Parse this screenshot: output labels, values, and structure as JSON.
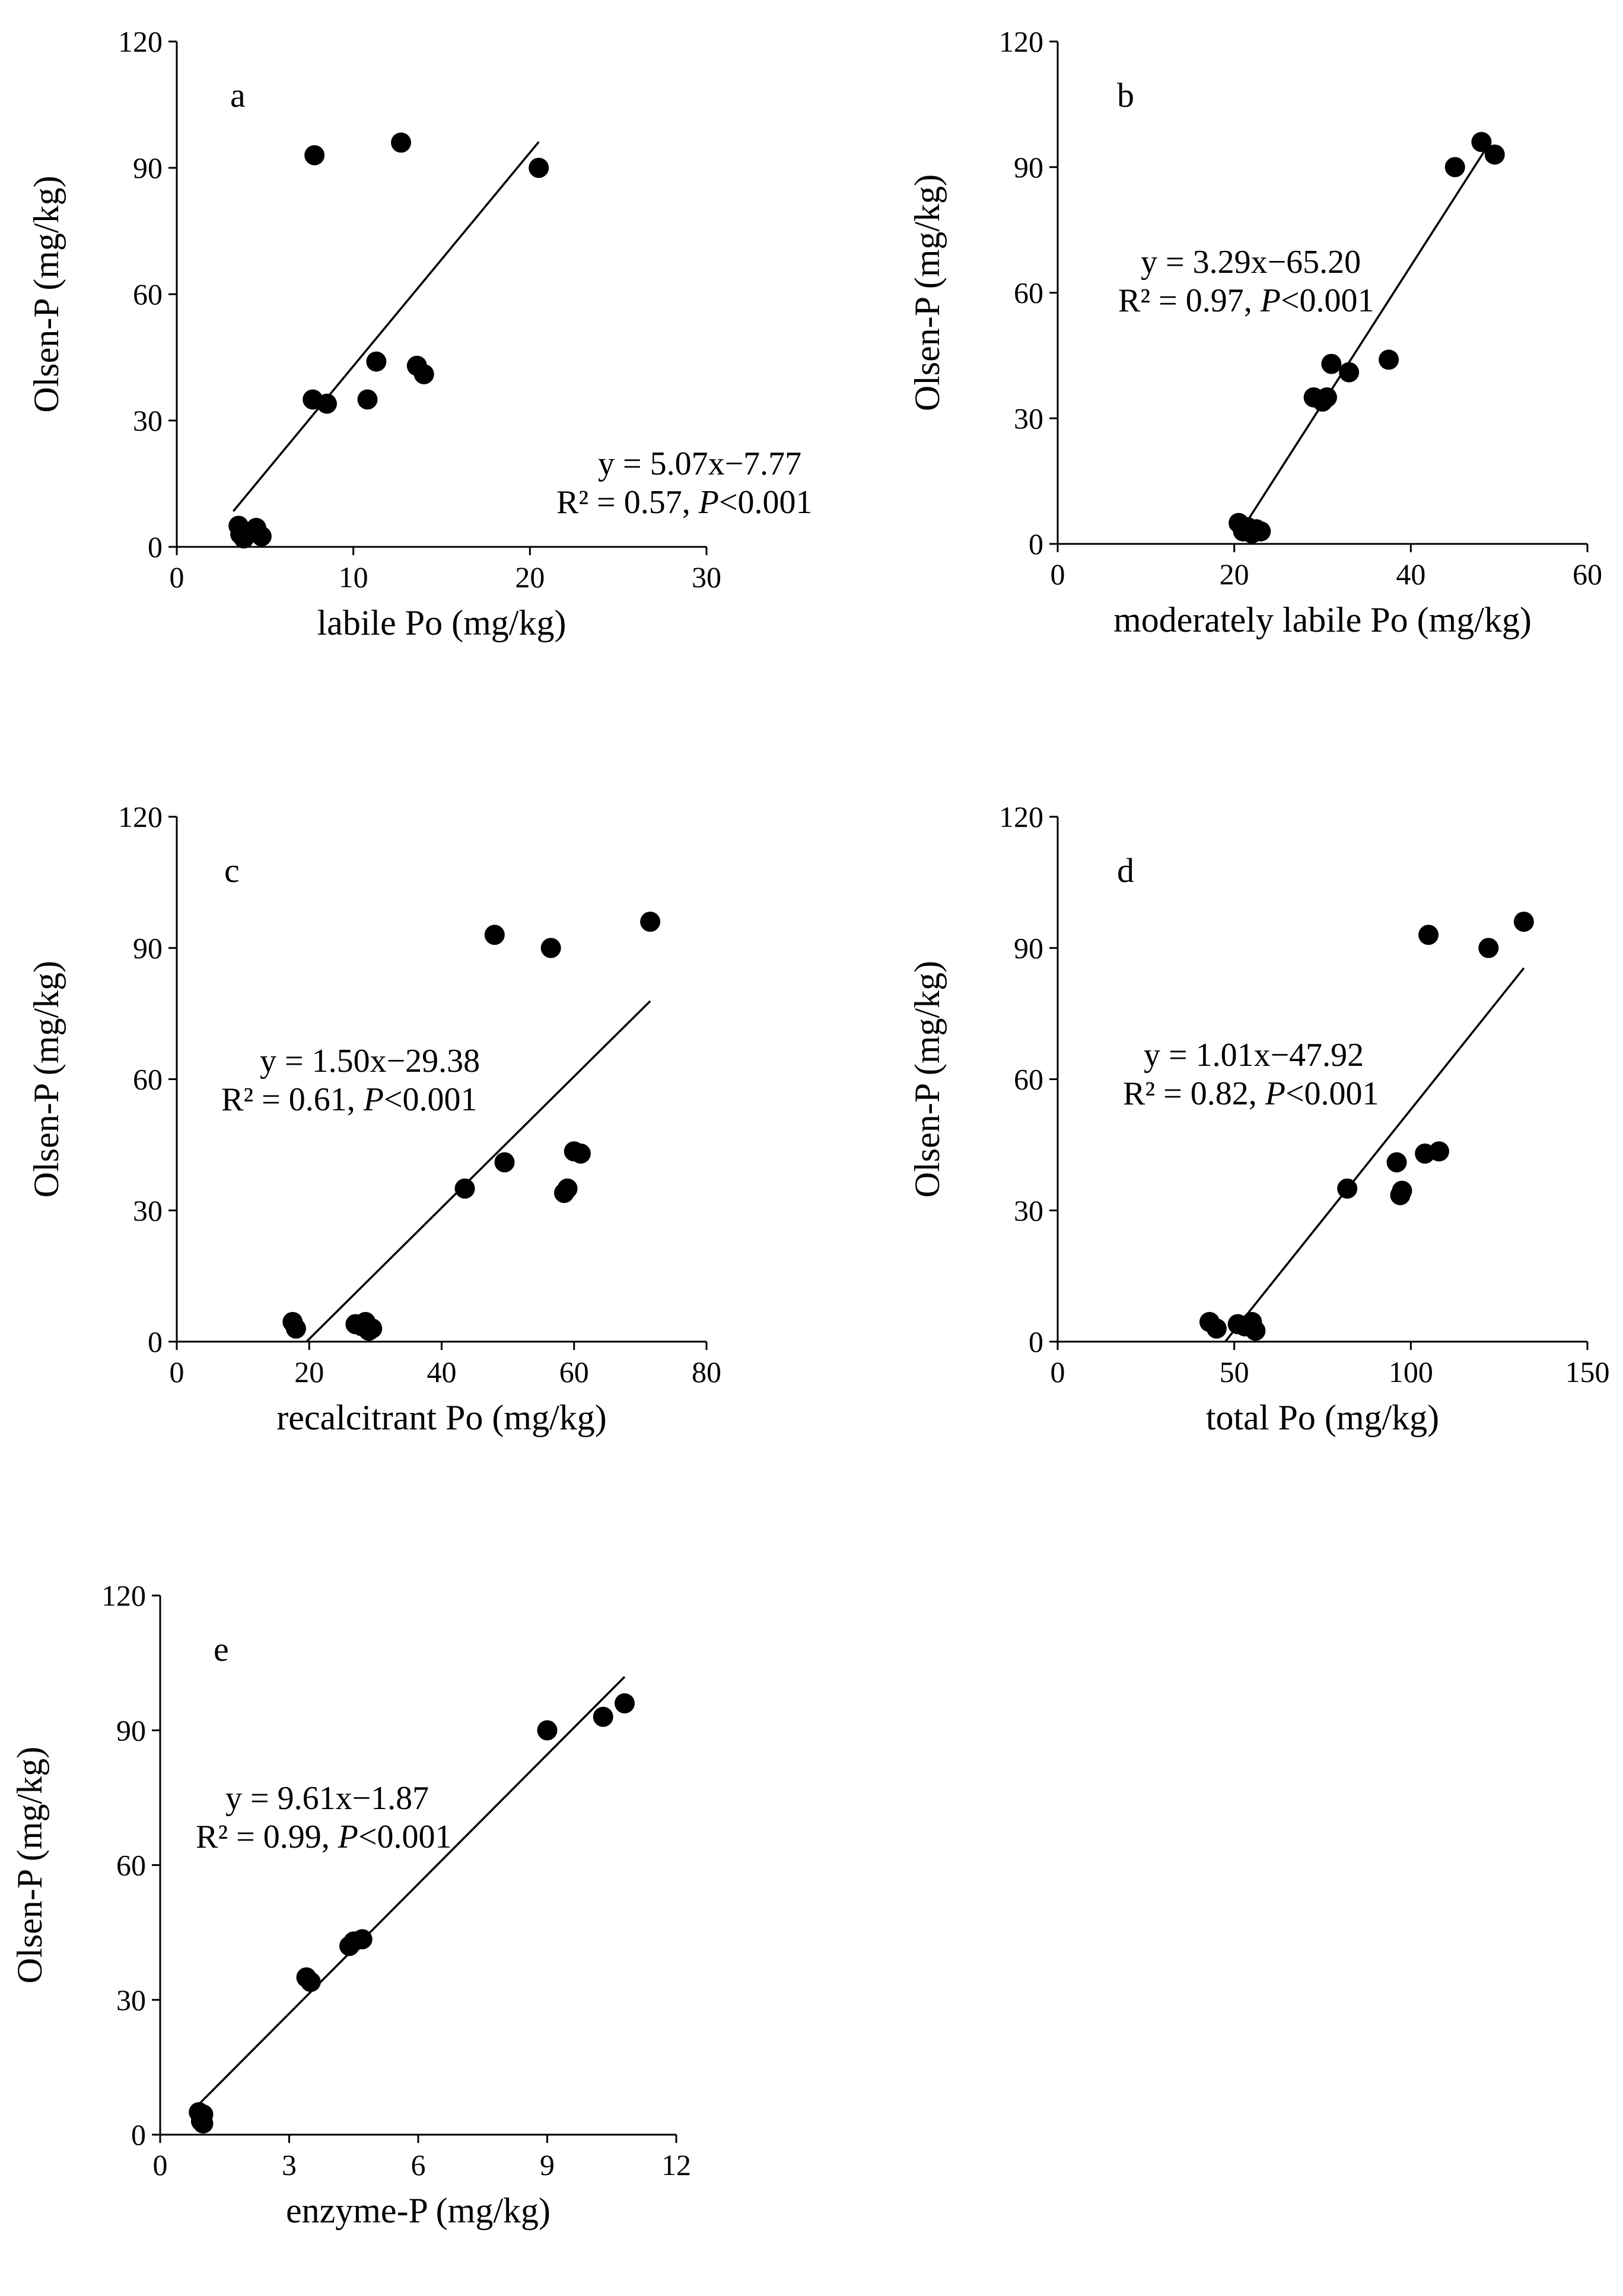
{
  "figure": {
    "y_axis_label": "Olsen-P (mg/kg)"
  },
  "chart_data": [
    {
      "type": "scatter",
      "panel": "a",
      "xlabel": "labile Po (mg/kg)",
      "ylabel": "Olsen-P (mg/kg)",
      "xlim": [
        0,
        30
      ],
      "ylim": [
        0,
        120
      ],
      "xticks": [
        0,
        10,
        20,
        30
      ],
      "yticks": [
        0,
        30,
        60,
        90,
        120
      ],
      "points": [
        [
          3.5,
          5
        ],
        [
          3.6,
          3
        ],
        [
          3.8,
          2
        ],
        [
          4.2,
          3.5
        ],
        [
          4.5,
          4.5
        ],
        [
          4.8,
          2.5
        ],
        [
          7.7,
          35
        ],
        [
          7.8,
          93
        ],
        [
          8.5,
          34
        ],
        [
          10.8,
          35
        ],
        [
          11.3,
          44
        ],
        [
          12.7,
          96
        ],
        [
          13.6,
          43
        ],
        [
          14.0,
          41
        ],
        [
          20.5,
          90
        ]
      ],
      "fit": {
        "slope": 5.07,
        "intercept": -7.77,
        "xrange": [
          3.2,
          20.5
        ]
      },
      "equation": "y = 5.07x−7.77",
      "r2": "R² = 0.57,",
      "p_symbol": "P",
      "p_value": "<0.001"
    },
    {
      "type": "scatter",
      "panel": "b",
      "xlabel": "moderately labile Po (mg/kg)",
      "ylabel": "Olsen-P (mg/kg)",
      "xlim": [
        0,
        60
      ],
      "ylim": [
        0,
        120
      ],
      "xticks": [
        0,
        20,
        40,
        60
      ],
      "yticks": [
        0,
        30,
        60,
        90,
        120
      ],
      "points": [
        [
          20.5,
          5
        ],
        [
          21.0,
          3
        ],
        [
          21.5,
          4
        ],
        [
          22.0,
          2.5
        ],
        [
          22.5,
          3.5
        ],
        [
          23.0,
          3
        ],
        [
          29.0,
          35
        ],
        [
          30.0,
          34
        ],
        [
          30.5,
          35
        ],
        [
          31.0,
          43
        ],
        [
          33.0,
          41
        ],
        [
          37.5,
          44
        ],
        [
          45.0,
          90
        ],
        [
          48.0,
          96
        ],
        [
          49.5,
          93
        ]
      ],
      "fit": {
        "slope": 3.29,
        "intercept": -65.2,
        "xrange": [
          21.0,
          49.0
        ]
      },
      "equation": "y = 3.29x−65.20",
      "r2": "R² = 0.97,",
      "p_symbol": "P",
      "p_value": "<0.001"
    },
    {
      "type": "scatter",
      "panel": "c",
      "xlabel": "recalcitrant Po (mg/kg)",
      "ylabel": "Olsen-P (mg/kg)",
      "xlim": [
        0,
        80
      ],
      "ylim": [
        0,
        120
      ],
      "xticks": [
        0,
        20,
        40,
        60,
        80
      ],
      "yticks": [
        0,
        30,
        60,
        90,
        120
      ],
      "points": [
        [
          17.5,
          4.5
        ],
        [
          18.0,
          3
        ],
        [
          27.0,
          4
        ],
        [
          28.0,
          3.5
        ],
        [
          28.5,
          4.5
        ],
        [
          29.0,
          2.5
        ],
        [
          29.5,
          3
        ],
        [
          43.5,
          35
        ],
        [
          48.0,
          93
        ],
        [
          49.5,
          41
        ],
        [
          56.5,
          90
        ],
        [
          58.5,
          34
        ],
        [
          59.0,
          35
        ],
        [
          60.0,
          43.5
        ],
        [
          61.0,
          43
        ],
        [
          71.5,
          96
        ]
      ],
      "fit": {
        "slope": 1.5,
        "intercept": -29.38,
        "xrange": [
          19.6,
          71.5
        ]
      },
      "equation": "y = 1.50x−29.38",
      "r2": "R² = 0.61,",
      "p_symbol": "P",
      "p_value": "<0.001"
    },
    {
      "type": "scatter",
      "panel": "d",
      "xlabel": "total Po (mg/kg)",
      "ylabel": "Olsen-P (mg/kg)",
      "xlim": [
        0,
        150
      ],
      "ylim": [
        0,
        120
      ],
      "xticks": [
        0,
        50,
        100,
        150
      ],
      "yticks": [
        0,
        30,
        60,
        90,
        120
      ],
      "points": [
        [
          43,
          4.5
        ],
        [
          45,
          3
        ],
        [
          51,
          4
        ],
        [
          53,
          3.5
        ],
        [
          55,
          4.5
        ],
        [
          56,
          2.5
        ],
        [
          82,
          35
        ],
        [
          96,
          41
        ],
        [
          97,
          33.5
        ],
        [
          97.5,
          34.5
        ],
        [
          104,
          43
        ],
        [
          105,
          93
        ],
        [
          108,
          43.5
        ],
        [
          122,
          90
        ],
        [
          132,
          96
        ]
      ],
      "fit": {
        "slope": 1.01,
        "intercept": -47.92,
        "xrange": [
          47.5,
          132.0
        ]
      },
      "equation": "y = 1.01x−47.92",
      "r2": "R² = 0.82,",
      "p_symbol": "P",
      "p_value": "<0.001"
    },
    {
      "type": "scatter",
      "panel": "e",
      "xlabel": "enzyme-P (mg/kg)",
      "ylabel": "Olsen-P (mg/kg)",
      "xlim": [
        0,
        12
      ],
      "ylim": [
        0,
        120
      ],
      "xticks": [
        0,
        3,
        6,
        9,
        12
      ],
      "yticks": [
        0,
        30,
        60,
        90,
        120
      ],
      "points": [
        [
          0.9,
          5
        ],
        [
          0.95,
          3
        ],
        [
          1.0,
          4.5
        ],
        [
          1.0,
          2.5
        ],
        [
          3.4,
          35
        ],
        [
          3.5,
          34
        ],
        [
          4.4,
          42
        ],
        [
          4.5,
          43
        ],
        [
          4.7,
          43.5
        ],
        [
          9.0,
          90
        ],
        [
          10.3,
          93
        ],
        [
          10.8,
          96
        ]
      ],
      "fit": {
        "slope": 9.61,
        "intercept": -1.87,
        "xrange": [
          0.8,
          10.8
        ]
      },
      "equation": "y = 9.61x−1.87",
      "r2": "R² = 0.99,",
      "p_symbol": "P",
      "p_value": "<0.001"
    }
  ]
}
